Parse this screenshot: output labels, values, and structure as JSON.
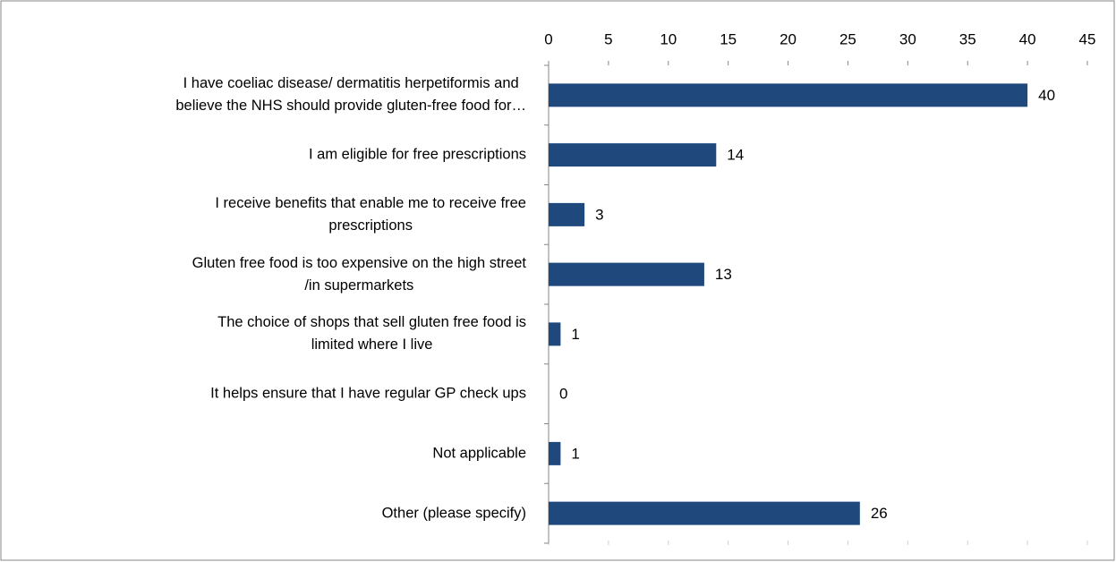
{
  "chart_data": {
    "type": "bar",
    "orientation": "horizontal",
    "categories": [
      "I have coeliac disease/ dermatitis herpetiformis and\nbelieve the NHS should provide gluten-free food for…",
      "I am eligible for free prescriptions",
      "I receive benefits that enable me to receive free\nprescriptions",
      "Gluten free food is too expensive on the high street\n/in supermarkets",
      "The choice of shops that sell gluten free food is\nlimited where I live",
      "It helps ensure that I have regular GP check ups",
      "Not applicable",
      "Other (please specify)"
    ],
    "values": [
      40,
      14,
      3,
      13,
      1,
      0,
      1,
      26
    ],
    "color": "#1f497d",
    "xlim": [
      0,
      45
    ],
    "xticks": [
      0,
      5,
      10,
      15,
      20,
      25,
      30,
      35,
      40,
      45
    ],
    "grid": false
  }
}
